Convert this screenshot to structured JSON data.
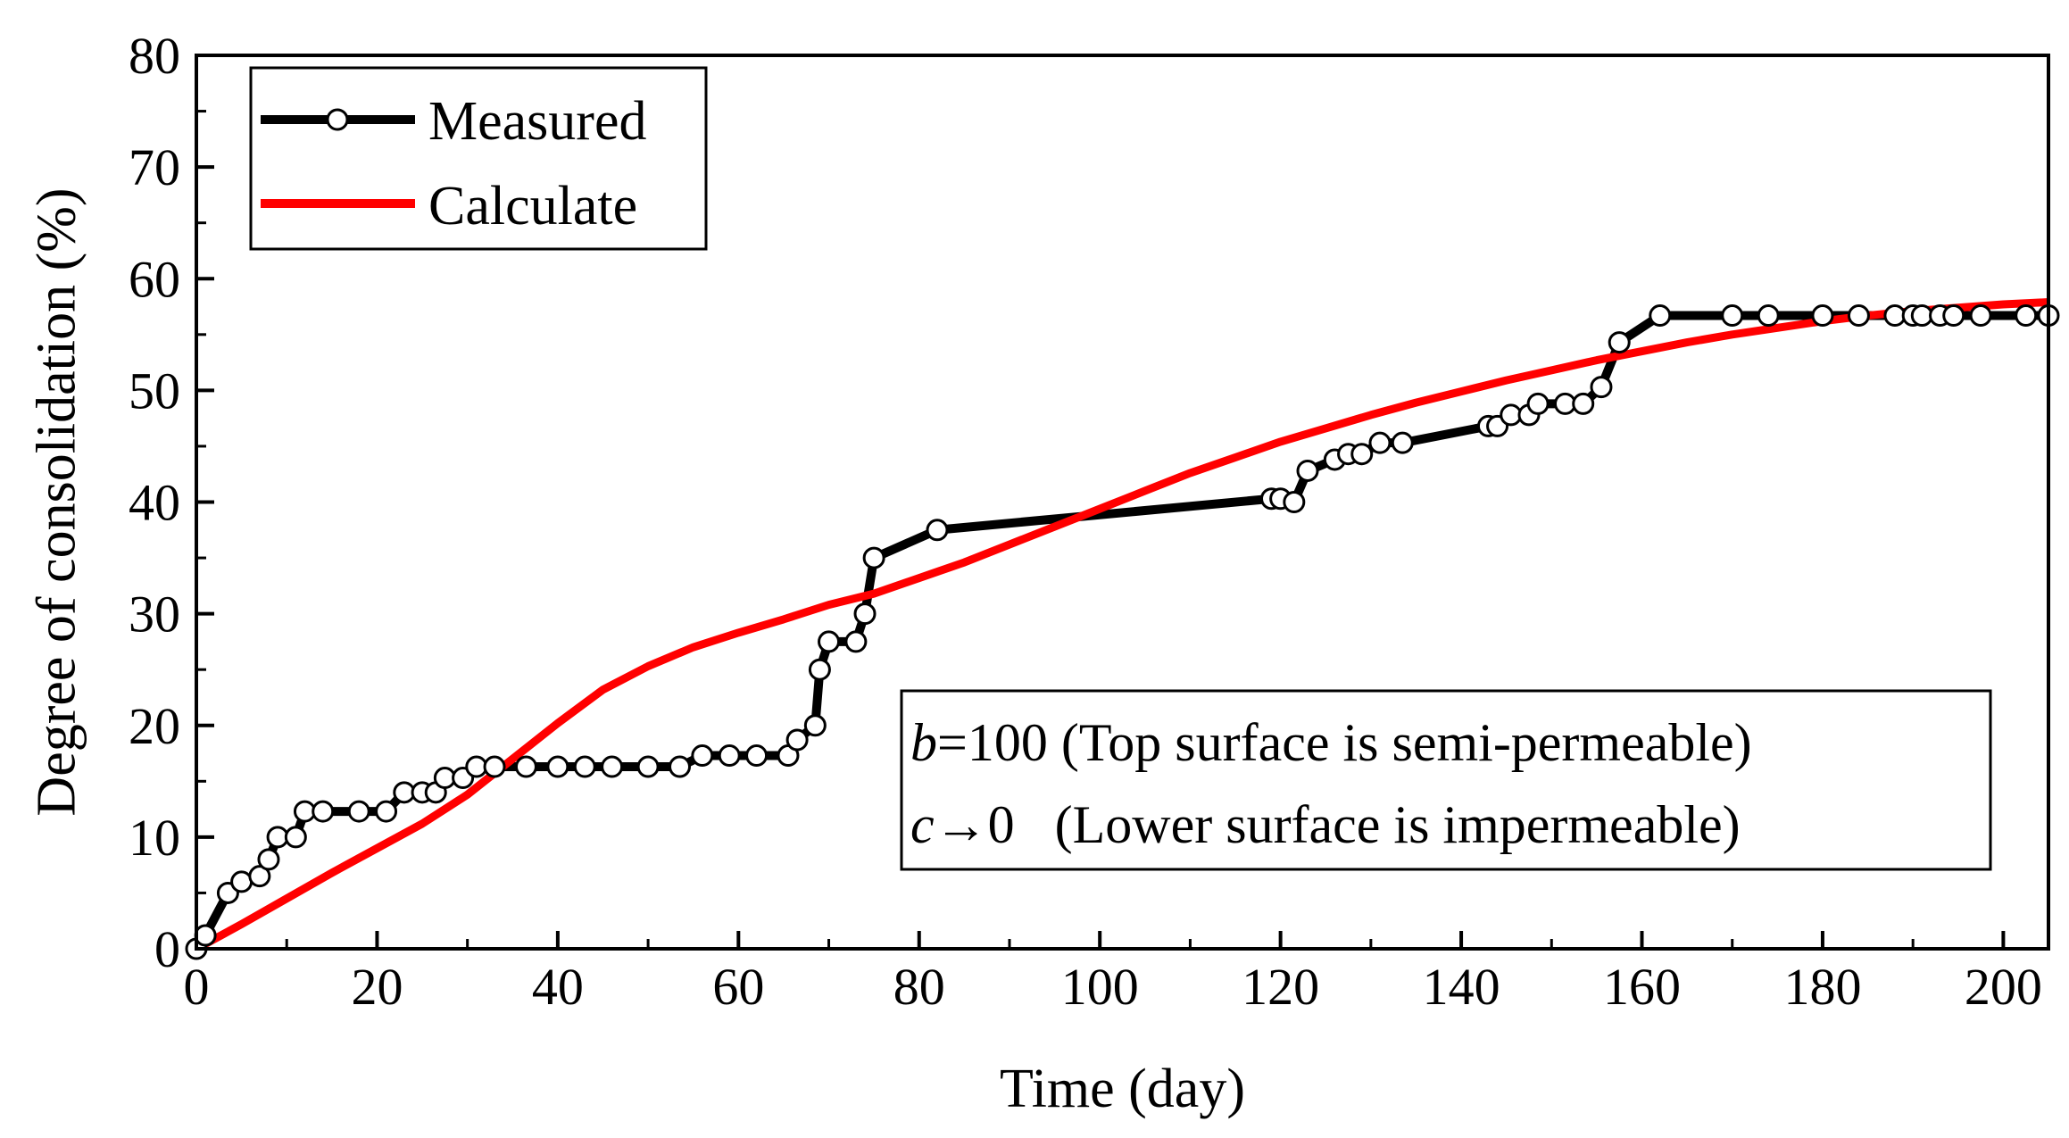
{
  "chart_data": {
    "type": "line",
    "title": "",
    "xlabel": "Time (day)",
    "ylabel": "Degree of consolidation (%)",
    "xlim": [
      0,
      205
    ],
    "ylim": [
      0,
      80
    ],
    "xticks": [
      0,
      20,
      40,
      60,
      80,
      100,
      120,
      140,
      160,
      180,
      200
    ],
    "yticks": [
      0,
      10,
      20,
      30,
      40,
      50,
      60,
      70,
      80
    ],
    "grid": false,
    "legend": {
      "placement": "top-left",
      "entries": [
        "Measured",
        "Calculate"
      ]
    },
    "annotation": {
      "placement": "center-right",
      "line1_var": "b",
      "line1_rest": "=100 (Top surface is semi-permeable)",
      "line2_var": "c",
      "line2_rest": "→0   (Lower surface is impermeable)"
    },
    "series": [
      {
        "name": "Measured",
        "color": "#000000",
        "marker": "open-circle",
        "x": [
          0,
          1,
          3.5,
          5,
          7,
          8,
          9,
          11,
          12,
          14,
          18,
          21,
          23,
          25,
          26.5,
          27.5,
          29.5,
          31,
          33,
          36.5,
          40,
          43,
          46,
          50,
          53.5,
          56,
          59,
          62,
          65.5,
          66.5,
          68.5,
          69,
          70,
          73,
          74,
          75,
          82,
          119,
          120,
          121.5,
          123,
          126,
          127.5,
          129,
          131,
          133.5,
          143,
          144,
          145.5,
          147.5,
          148.5,
          151.5,
          153.5,
          155.5,
          157.5,
          162,
          170,
          174,
          180,
          184,
          188,
          190,
          191,
          193,
          194.5,
          197.5,
          202.5,
          205
        ],
        "y": [
          0,
          1.2,
          5,
          6,
          6.5,
          8,
          10,
          10,
          12.3,
          12.3,
          12.3,
          12.3,
          14,
          14,
          14,
          15.3,
          15.3,
          16.3,
          16.3,
          16.3,
          16.3,
          16.3,
          16.3,
          16.3,
          16.3,
          17.3,
          17.3,
          17.3,
          17.3,
          18.7,
          20,
          25,
          27.5,
          27.5,
          30,
          35,
          37.5,
          40.3,
          40.3,
          40,
          42.8,
          43.8,
          44.3,
          44.3,
          45.3,
          45.3,
          46.8,
          46.8,
          47.8,
          47.8,
          48.8,
          48.8,
          48.8,
          50.3,
          54.3,
          56.7,
          56.7,
          56.7,
          56.7,
          56.7,
          56.7,
          56.7,
          56.7,
          56.7,
          56.7,
          56.7,
          56.7,
          56.7
        ]
      },
      {
        "name": "Calculate",
        "color": "#ff0000",
        "marker": "none",
        "x": [
          0,
          5,
          10,
          15,
          20,
          25,
          30,
          35,
          40,
          45,
          50,
          55,
          60,
          65,
          70,
          75,
          80,
          85,
          90,
          95,
          100,
          105,
          110,
          115,
          120,
          125,
          130,
          135,
          140,
          145,
          150,
          155,
          160,
          165,
          170,
          175,
          180,
          185,
          190,
          195,
          200,
          205
        ],
        "y": [
          0,
          2.2,
          4.5,
          6.8,
          9,
          11.2,
          13.8,
          17,
          20.2,
          23.2,
          25.3,
          27,
          28.3,
          29.5,
          30.8,
          31.8,
          33.2,
          34.6,
          36.2,
          37.8,
          39.4,
          41,
          42.6,
          44,
          45.4,
          46.6,
          47.8,
          48.9,
          49.9,
          50.9,
          51.8,
          52.7,
          53.5,
          54.3,
          55,
          55.6,
          56.2,
          56.7,
          57.1,
          57.4,
          57.7,
          57.9
        ]
      }
    ]
  }
}
